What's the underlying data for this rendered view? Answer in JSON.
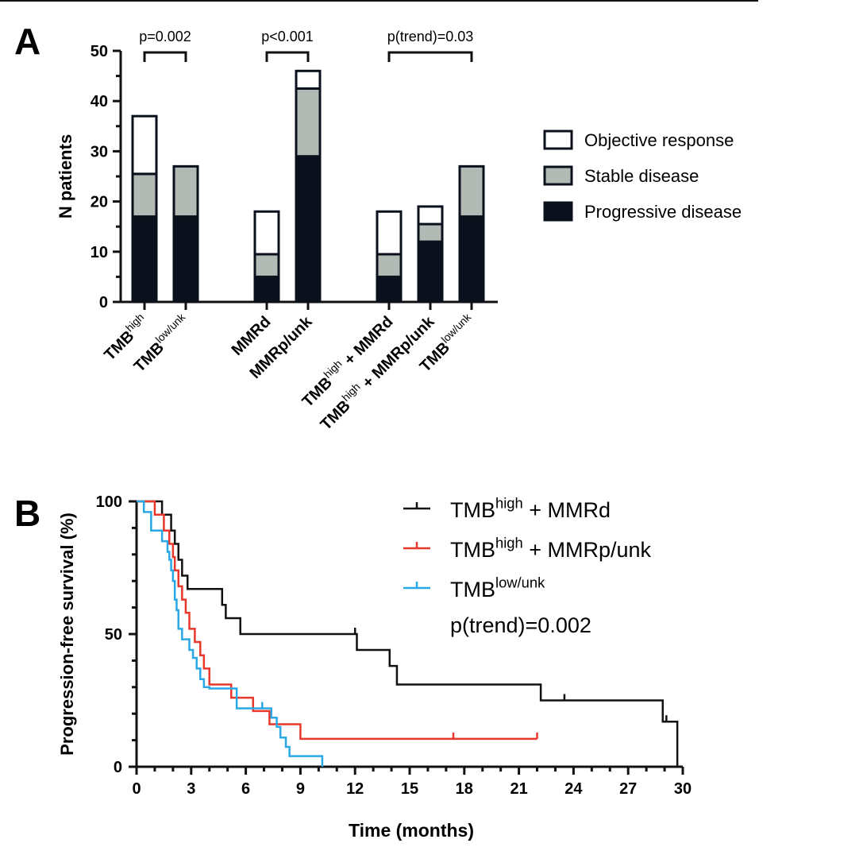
{
  "panel_a_label": "A",
  "panel_b_label": "B",
  "colors": {
    "objective_response": "#ffffff",
    "stable_disease": "#b3bab6",
    "progressive_disease": "#0b111c",
    "series_tmb_high_mmrd": "#111111",
    "series_tmb_high_mmrp": "#e8382b",
    "series_tmb_low": "#29a8e5"
  },
  "chart_data": [
    {
      "type": "bar",
      "stacked": true,
      "ylabel": "N patients",
      "xlabel": "",
      "ylim": [
        0,
        50
      ],
      "yticks": [
        0,
        10,
        20,
        30,
        40,
        50
      ],
      "categories": [
        {
          "id": "c1",
          "base": "TMB",
          "sup": "high",
          "suffix": ""
        },
        {
          "id": "c2",
          "base": "TMB",
          "sup": "low/unk",
          "suffix": ""
        },
        {
          "id": "c3",
          "base": "MMRd",
          "sup": "",
          "suffix": ""
        },
        {
          "id": "c4",
          "base": "MMRp/unk",
          "sup": "",
          "suffix": ""
        },
        {
          "id": "c5",
          "base": "TMB",
          "sup": "high",
          "suffix": " + MMRd"
        },
        {
          "id": "c6",
          "base": "TMB",
          "sup": "high",
          "suffix": " + MMRp/unk"
        },
        {
          "id": "c7",
          "base": "TMB",
          "sup": "low/unk",
          "suffix": ""
        }
      ],
      "series": [
        {
          "name": "Progressive disease",
          "values": [
            17,
            17,
            5,
            29,
            5,
            12,
            17
          ]
        },
        {
          "name": "Stable disease",
          "values": [
            8.5,
            10,
            4.5,
            13.5,
            4.5,
            3.5,
            10
          ]
        },
        {
          "name": "Objective response",
          "values": [
            11.5,
            0,
            8.5,
            3.5,
            8.5,
            3.5,
            0
          ]
        }
      ],
      "legend": [
        "Objective response",
        "Stable disease",
        "Progressive disease"
      ],
      "legend_position": "right",
      "annotations": [
        {
          "text": "p=0.002",
          "from": 0,
          "to": 1
        },
        {
          "text": "p<0.001",
          "from": 2,
          "to": 3
        },
        {
          "text": "p(trend)=0.03",
          "from": 4,
          "to": 6
        }
      ]
    },
    {
      "type": "line",
      "step": true,
      "xlabel": "Time (months)",
      "ylabel": "Progression-free survival (%)",
      "xlim": [
        0,
        30
      ],
      "ylim": [
        0,
        100
      ],
      "xticks": [
        0,
        3,
        6,
        9,
        12,
        15,
        18,
        21,
        24,
        27,
        30
      ],
      "yticks": [
        0,
        50,
        100
      ],
      "legend_position": "top-right",
      "annotation": "p(trend)=0.002",
      "series": [
        {
          "name": "TMB high + MMRd",
          "legend": {
            "base": "TMB",
            "sup": "high",
            "suffix": " + MMRd"
          },
          "x": [
            0,
            1.4,
            1.9,
            2.1,
            2.3,
            2.5,
            2.8,
            4.7,
            4.9,
            5.7,
            9.2,
            12.0,
            12.1,
            13.9,
            14.3,
            22.2,
            28.9,
            29.1,
            29.7
          ],
          "y": [
            100,
            95,
            89,
            84,
            78,
            72,
            67,
            61,
            56,
            50,
            50,
            50,
            44,
            38,
            31,
            25,
            17,
            17,
            0
          ],
          "censor_x": [
            12.0,
            23.5,
            29.1
          ],
          "censor_y": [
            50,
            25,
            17
          ]
        },
        {
          "name": "TMB high + MMRp/unk",
          "legend": {
            "base": "TMB",
            "sup": "high",
            "suffix": " + MMRp/unk"
          },
          "x": [
            0,
            1.0,
            1.5,
            1.8,
            2.0,
            2.1,
            2.3,
            2.5,
            2.7,
            2.9,
            3.2,
            3.5,
            3.7,
            4.0,
            5.2,
            6.4,
            7.3,
            9.0
          ],
          "y": [
            100,
            95,
            89,
            84,
            79,
            74,
            68,
            63,
            58,
            52,
            47,
            42,
            37,
            31,
            26,
            21,
            16,
            10.5
          ],
          "censor_x": [
            17.4,
            22.0
          ],
          "censor_y": [
            10.5,
            10.5
          ],
          "end_x": 22.0
        },
        {
          "name": "TMB low/unk",
          "legend": {
            "base": "TMB",
            "sup": "low/unk",
            "suffix": ""
          },
          "x": [
            0,
            0.4,
            0.8,
            1.4,
            1.7,
            1.8,
            1.9,
            2.0,
            2.1,
            2.2,
            2.3,
            2.5,
            2.9,
            3.1,
            3.3,
            3.5,
            3.7,
            4.0,
            5.5,
            7.0,
            7.4,
            7.7,
            7.9,
            8.2,
            8.4,
            10.2
          ],
          "y": [
            100,
            96,
            89,
            85,
            81,
            78,
            74,
            70,
            63,
            59,
            52,
            48,
            44,
            41,
            37,
            33,
            30,
            29.5,
            22,
            22,
            18.5,
            15,
            11,
            7.5,
            4,
            0
          ],
          "censor_x": [
            6.9
          ],
          "censor_y": [
            22
          ],
          "end_x": 10.2
        }
      ]
    }
  ]
}
